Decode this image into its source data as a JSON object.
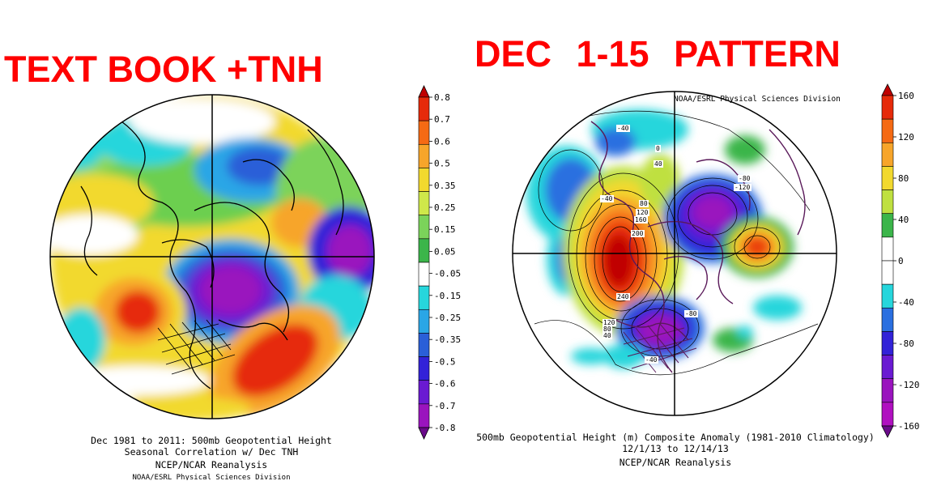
{
  "left_panel": {
    "headline": "TEXT BOOK +TNH",
    "caption_lines": [
      "Dec 1981 to 2011: 500mb Geopotential Height",
      "Seasonal Correlation w/ Dec TNH",
      "NCEP/NCAR Reanalysis"
    ],
    "credit": "NOAA/ESRL Physical Sciences Division",
    "colorbar": {
      "labels": [
        "0.8",
        "0.7",
        "0.6",
        "0.5",
        "0.35",
        "0.25",
        "0.15",
        "0.05",
        "-0.05",
        "-0.15",
        "-0.25",
        "-0.35",
        "-0.5",
        "-0.6",
        "-0.7",
        "-0.8"
      ],
      "colors": [
        "#c00000",
        "#e62a0a",
        "#f56a14",
        "#f7a52a",
        "#f2d92e",
        "#cfe84a",
        "#7bd35a",
        "#3bb54a",
        "#ffffff",
        "#26d6dc",
        "#2aa6e6",
        "#2a5fd8",
        "#3222d8",
        "#6a1ad2",
        "#9a14be",
        "#6a0a8a"
      ]
    }
  },
  "right_panel": {
    "headline": "DEC 1-15   PATTERN",
    "credit": "NOAA/ESRL Physical Sciences Division",
    "caption_lines": [
      "500mb Geopotential Height (m) Composite Anomaly (1981-2010 Climatology)",
      "12/1/13  to 12/14/13",
      "NCEP/NCAR Reanalysis"
    ],
    "colorbar": {
      "labels": [
        "160",
        "120",
        "80",
        "40",
        "0",
        "-40",
        "-80",
        "-120",
        "-160"
      ],
      "colors": [
        "#c00000",
        "#e62a0a",
        "#f56a14",
        "#f7a52a",
        "#f2d92e",
        "#bfe040",
        "#3bb54a",
        "#ffffff",
        "#ffffff",
        "#26d6dc",
        "#2a6fe0",
        "#3222d8",
        "#6a1ad2",
        "#9a14be",
        "#b010c0",
        "#6a0a8a"
      ]
    },
    "contour_labels": [
      "-40",
      "0",
      "40",
      "80",
      "120",
      "160",
      "200",
      "240",
      "-40",
      "-80",
      "-120",
      "-80",
      "-40",
      "120",
      "80",
      "40"
    ]
  }
}
